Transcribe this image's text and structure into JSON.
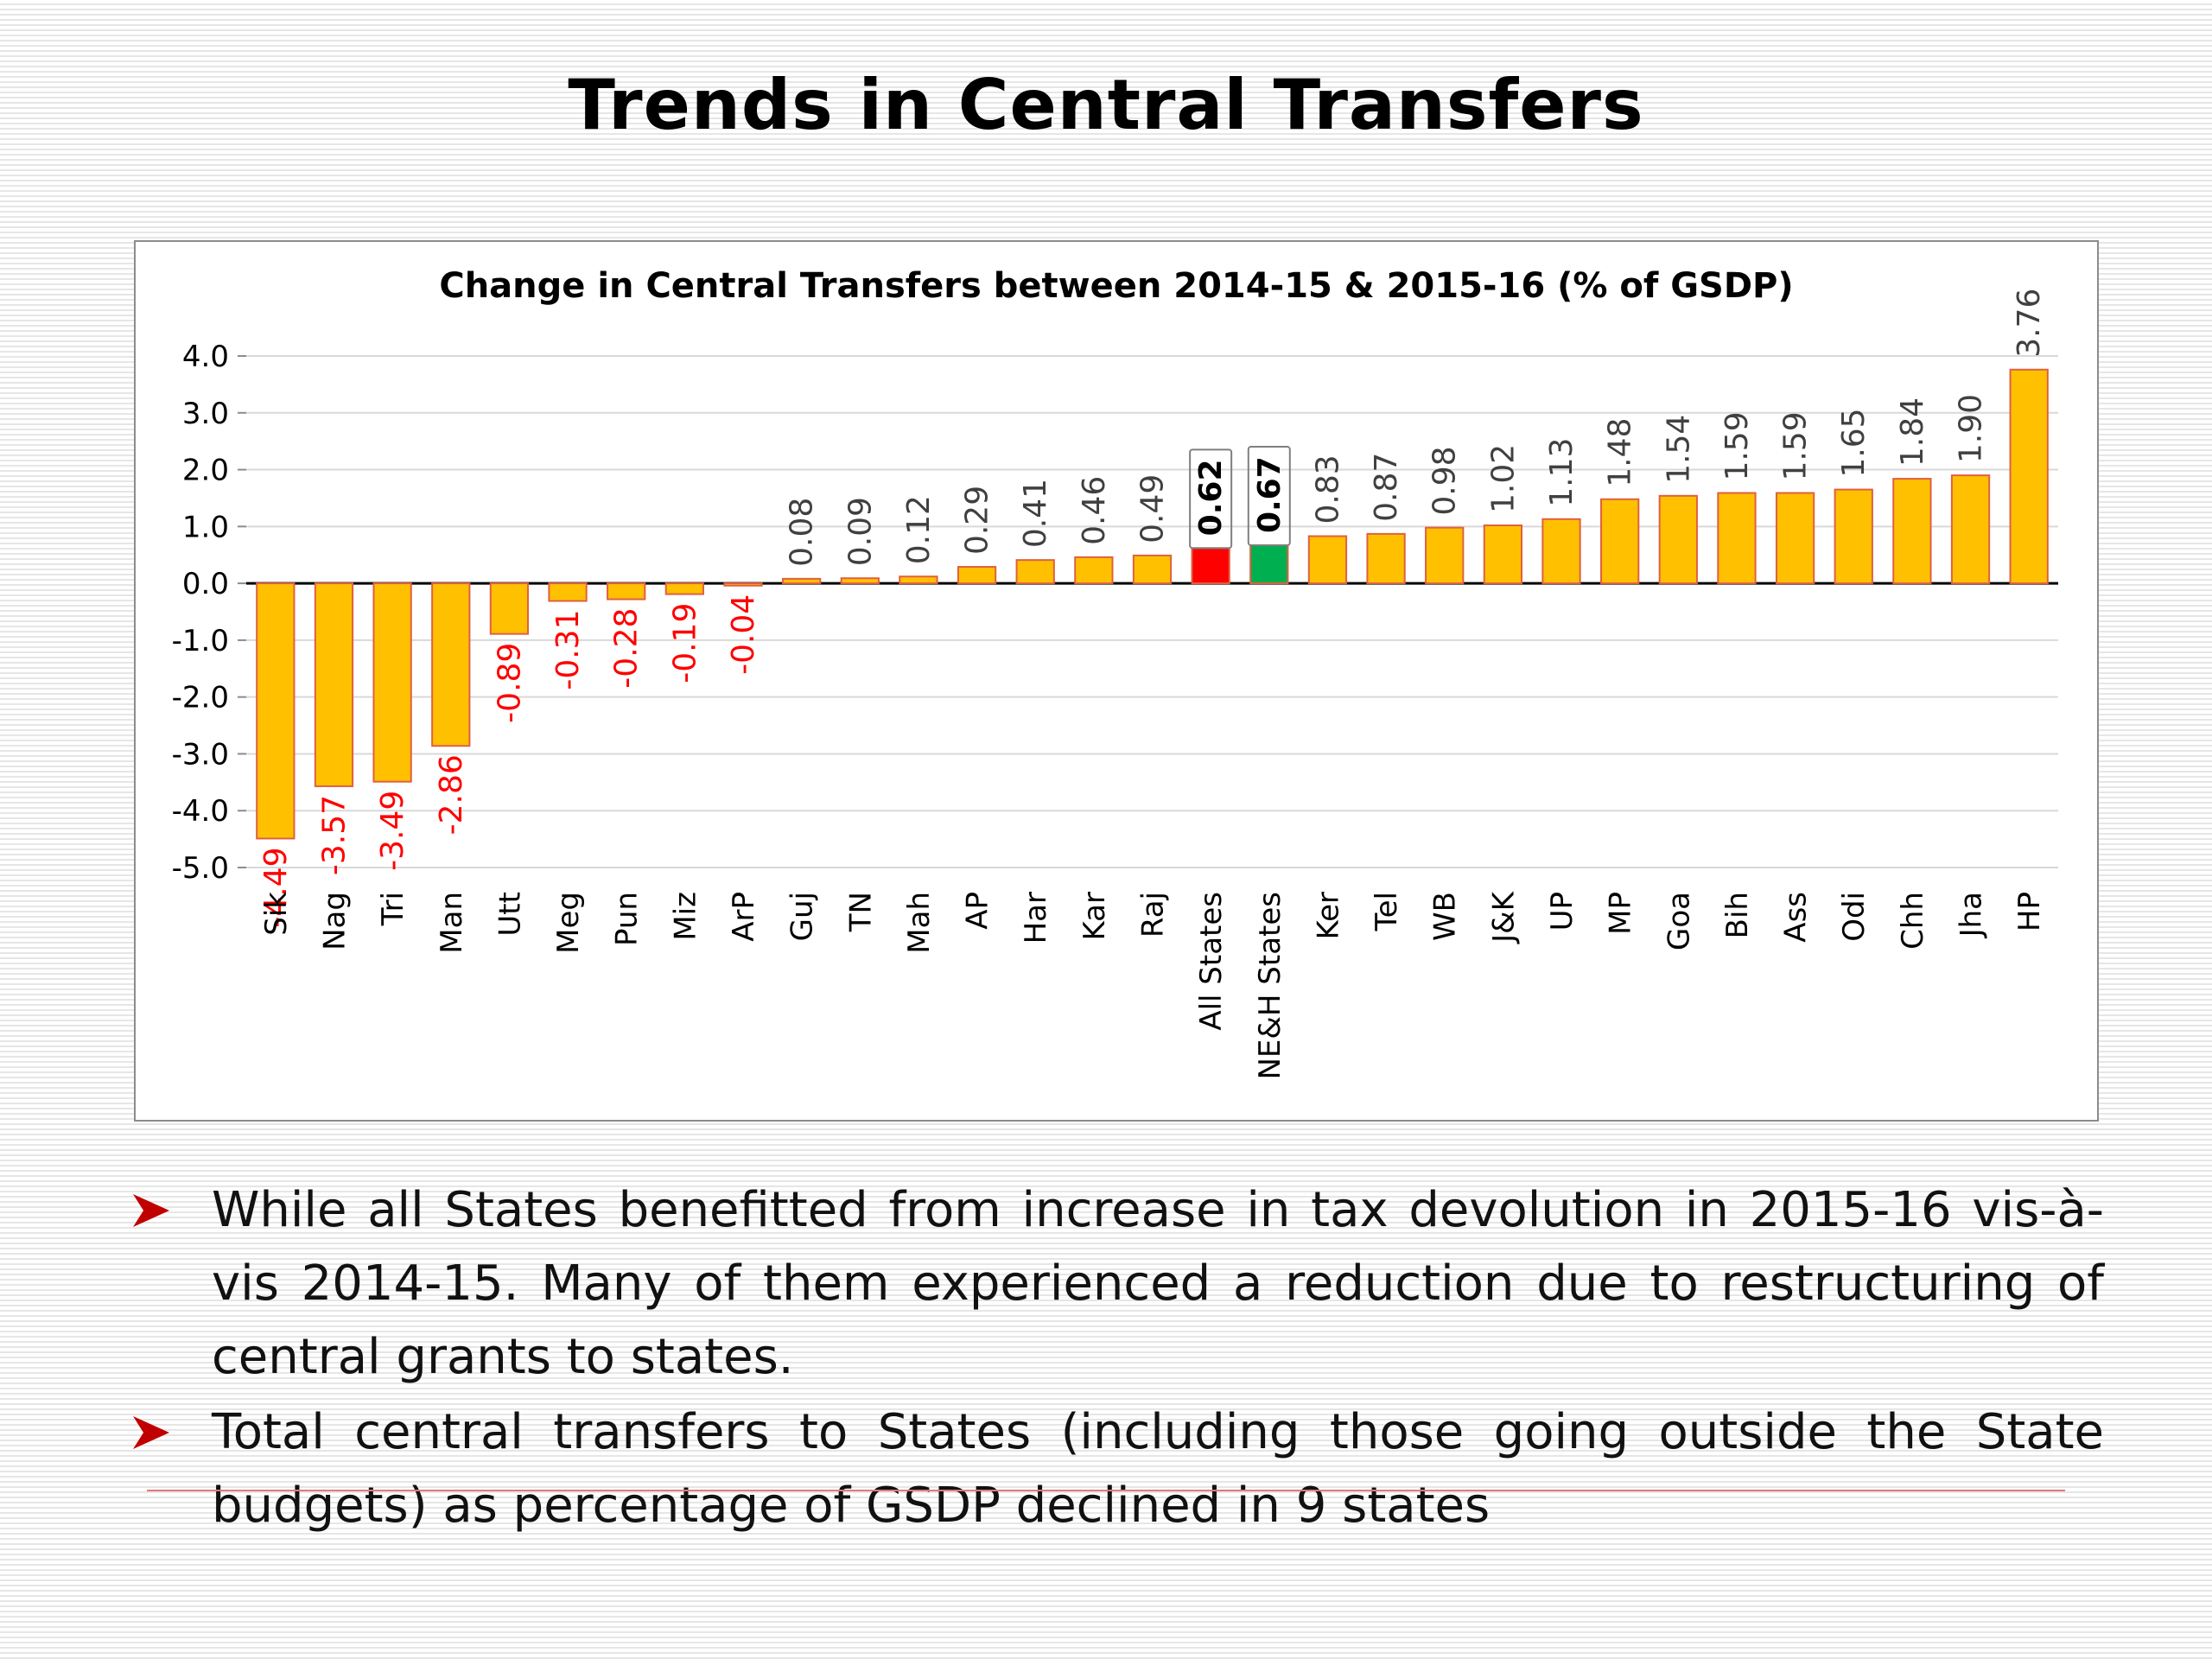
{
  "slide": {
    "title": "Trends in Central Transfers"
  },
  "colors": {
    "bar": "#FFC000",
    "bar_border": "#E06040",
    "all_states_bar": "#FF0000",
    "ne_states_bar": "#00B050",
    "negative_label": "#FF0000",
    "positive_label": "#404040",
    "bullet_arrow": "#C00000"
  },
  "chart_data": {
    "type": "bar",
    "title": "Change in Central Transfers between 2014-15 & 2015-16 (% of GSDP)",
    "categories": [
      "Sik",
      "Nag",
      "Tri",
      "Man",
      "Utt",
      "Meg",
      "Pun",
      "Miz",
      "ArP",
      "Guj",
      "TN",
      "Mah",
      "AP",
      "Har",
      "Kar",
      "Raj",
      "All States",
      "NE&H States",
      "Ker",
      "Tel",
      "WB",
      "J&K",
      "UP",
      "MP",
      "Goa",
      "Bih",
      "Ass",
      "Odi",
      "Chh",
      "Jha",
      "HP"
    ],
    "values": [
      -4.49,
      -3.57,
      -3.49,
      -2.86,
      -0.89,
      -0.31,
      -0.28,
      -0.19,
      -0.04,
      0.08,
      0.09,
      0.12,
      0.29,
      0.41,
      0.46,
      0.49,
      0.62,
      0.67,
      0.83,
      0.87,
      0.98,
      1.02,
      1.13,
      1.48,
      1.54,
      1.59,
      1.59,
      1.65,
      1.84,
      1.9,
      3.76
    ],
    "value_labels": [
      "-4.49",
      "-3.57",
      "-3.49",
      "-2.86",
      "-0.89",
      "-0.31",
      "-0.28",
      "-0.19",
      "-0.04",
      "0.08",
      "0.09",
      "0.12",
      "0.29",
      "0.41",
      "0.46",
      "0.49",
      "0.62",
      "0.67",
      "0.83",
      "0.87",
      "0.98",
      "1.02",
      "1.13",
      "1.48",
      "1.54",
      "1.59",
      "1.59",
      "1.65",
      "1.84",
      "1.90",
      "3.76"
    ],
    "highlighted": [
      "All States",
      "NE&H States"
    ],
    "yticks": [
      "4.0",
      "3.0",
      "2.0",
      "1.0",
      "0.0",
      "-1.0",
      "-2.0",
      "-3.0",
      "-4.0",
      "-5.0"
    ],
    "ylim": [
      -5,
      4
    ],
    "grid": true,
    "xlabel": "",
    "ylabel": ""
  },
  "bullets": [
    "While all States benefitted from increase in tax devolution in 2015-16 vis-à-vis 2014-15. Many of them experienced a reduction due to restructuring of central grants to states.",
    "Total central transfers to States (including those going outside the State budgets) as percentage of GSDP declined in 9 states"
  ]
}
